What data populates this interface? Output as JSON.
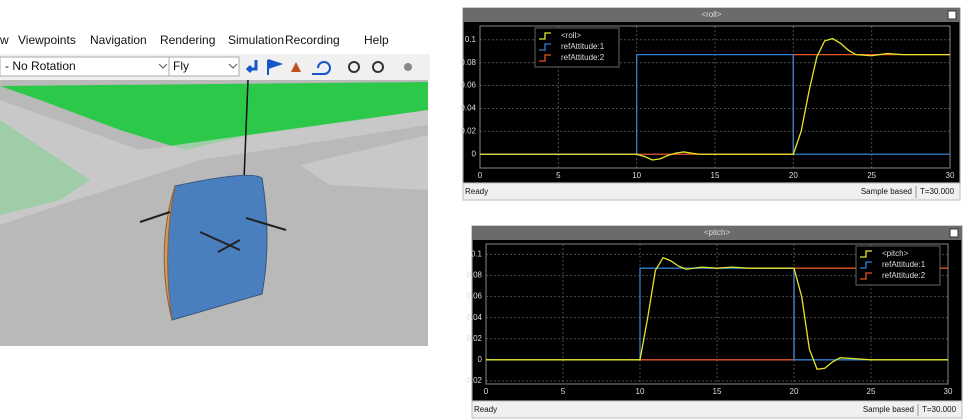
{
  "viewer": {
    "menu": [
      "w",
      "Viewpoints",
      "Navigation",
      "Rendering",
      "Simulation",
      "Recording",
      "Help"
    ],
    "rotation_dropdown": "- No Rotation",
    "mode_dropdown": "Fly"
  },
  "chart_data": [
    {
      "type": "line",
      "title": "<roll>",
      "legend": "upper left",
      "xlim": [
        0,
        30
      ],
      "ylim": [
        -0.012,
        0.112
      ],
      "xticks": [
        0,
        5,
        10,
        15,
        20,
        25,
        30
      ],
      "yticks": [
        0,
        0.02,
        0.04,
        0.06,
        0.08,
        0.1
      ],
      "grid": true,
      "series": [
        {
          "name": "<roll>",
          "color": "#e6e62a",
          "x": [
            0,
            10,
            10.5,
            11,
            11.5,
            12,
            12.5,
            13,
            13.5,
            14,
            15,
            20,
            20.5,
            21,
            21.5,
            22,
            22.5,
            23,
            23.5,
            24,
            25,
            26,
            27,
            28,
            30
          ],
          "values": [
            0,
            0,
            -0.002,
            -0.005,
            -0.004,
            -0.001,
            0.001,
            0.002,
            0.001,
            0,
            0,
            0,
            0.02,
            0.055,
            0.085,
            0.099,
            0.101,
            0.097,
            0.091,
            0.087,
            0.086,
            0.088,
            0.087,
            0.087,
            0.087
          ]
        },
        {
          "name": "refAttitude:1",
          "color": "#2f7fd0",
          "x": [
            0,
            10,
            10,
            20,
            20,
            30
          ],
          "values": [
            0,
            0,
            0.087,
            0.087,
            0,
            0
          ]
        },
        {
          "name": "refAttitude:2",
          "color": "#e0582a",
          "x": [
            0,
            20,
            20,
            30
          ],
          "values": [
            0,
            0,
            0.087,
            0.087
          ]
        }
      ]
    },
    {
      "type": "line",
      "title": "<pitch>",
      "legend": "upper right",
      "xlim": [
        0,
        30
      ],
      "ylim": [
        -0.023,
        0.11
      ],
      "xticks": [
        0,
        5,
        10,
        15,
        20,
        25,
        30
      ],
      "yticks": [
        -0.02,
        0,
        0.02,
        0.04,
        0.06,
        0.08,
        0.1
      ],
      "grid": true,
      "series": [
        {
          "name": "<pitch>",
          "color": "#e6e62a",
          "x": [
            0,
            10,
            10.5,
            11,
            11.5,
            12,
            12.5,
            13,
            14,
            15,
            16,
            17,
            18,
            19,
            20,
            20.5,
            21,
            21.5,
            22,
            22.5,
            23,
            24,
            25,
            27,
            30
          ],
          "values": [
            0,
            0,
            0.04,
            0.085,
            0.097,
            0.094,
            0.089,
            0.086,
            0.088,
            0.087,
            0.088,
            0.087,
            0.087,
            0.087,
            0.087,
            0.06,
            0.01,
            -0.009,
            -0.008,
            -0.002,
            0.002,
            0.001,
            0,
            0,
            0
          ]
        },
        {
          "name": "refAttitude:1",
          "color": "#2f7fd0",
          "x": [
            0,
            10,
            10,
            20,
            20,
            30
          ],
          "values": [
            0,
            0,
            0.087,
            0.087,
            0,
            0
          ]
        },
        {
          "name": "refAttitude:2",
          "color": "#e0582a",
          "x": [
            0,
            20,
            20,
            30
          ],
          "values": [
            0,
            0,
            0.087,
            0.087
          ]
        }
      ]
    }
  ],
  "status_bars": [
    {
      "state": "Ready",
      "mode": "Sample based",
      "time": "T=30.000"
    },
    {
      "state": "Ready",
      "mode": "Sample based",
      "time": "T=30.000"
    }
  ]
}
